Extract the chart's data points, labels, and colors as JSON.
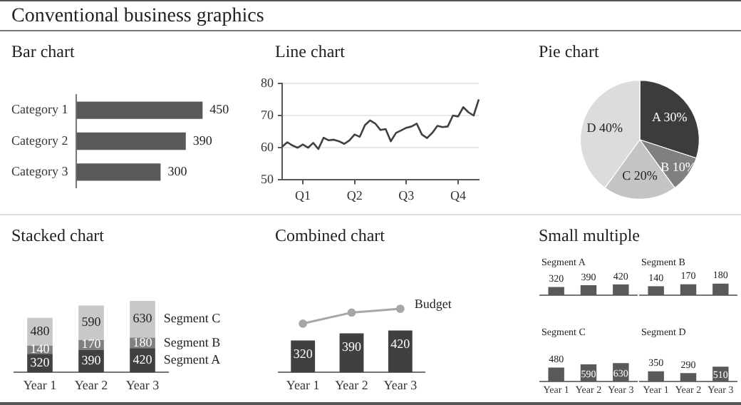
{
  "chart_data": [
    {
      "type": "other",
      "title": "Conventional business graphics"
    },
    {
      "type": "bar",
      "title": "Bar chart",
      "orientation": "horizontal",
      "categories": [
        "Category 1",
        "Category 2",
        "Category 3"
      ],
      "values": [
        450,
        390,
        300
      ],
      "color": "#595959",
      "data_labels": true
    },
    {
      "type": "line",
      "title": "Line chart",
      "categories": [
        null,
        null,
        null,
        null,
        "Q1",
        null,
        null,
        null,
        null,
        null,
        null,
        null,
        null,
        null,
        "Q2",
        null,
        null,
        null,
        null,
        null,
        null,
        null,
        null,
        null,
        "Q3",
        null,
        null,
        null,
        null,
        null,
        null,
        null,
        null,
        null,
        "Q4",
        null,
        null,
        null,
        null
      ],
      "values": [
        60.3,
        61.7,
        60.7,
        60,
        61,
        60,
        61.5,
        59.6,
        63.1,
        62.3,
        62.5,
        62,
        61.2,
        62.3,
        64.1,
        63.4,
        67,
        68.5,
        67.5,
        65.5,
        65.8,
        62,
        64.6,
        65.4,
        66.2,
        66.6,
        67.5,
        64.1,
        63,
        64.6,
        66.8,
        66.4,
        66.6,
        70,
        69.7,
        72.6,
        71,
        70,
        75
      ],
      "color": "#404040",
      "ylim": [
        50,
        80
      ],
      "yticks": [
        50,
        60,
        70,
        80
      ],
      "grid": "y"
    },
    {
      "type": "pie",
      "title": "Pie chart",
      "categories": [
        "A",
        "B",
        "C",
        "D"
      ],
      "values": [
        30,
        10,
        20,
        40
      ],
      "colors": [
        "#3c3c3c",
        "#808080",
        "#c4c4c4",
        "#dcdcdc"
      ],
      "value_labels": [
        "30%",
        "10%",
        "20%",
        "40%"
      ]
    },
    {
      "type": "bar",
      "title": "Stacked chart",
      "stacked": true,
      "categories": [
        "Year 1",
        "Year 2",
        "Year 3"
      ],
      "data_labels": true,
      "series": [
        {
          "name": "Segment A",
          "color": "#404040",
          "values": [
            320,
            390,
            420
          ]
        },
        {
          "name": "Segment B",
          "color": "#808080",
          "values": [
            140,
            170,
            180
          ]
        },
        {
          "name": "Segment C",
          "color": "#c8c8c8",
          "values": [
            480,
            590,
            630
          ]
        }
      ]
    },
    {
      "type": "bar",
      "title": "Combined chart",
      "categories": [
        "Year 1",
        "Year 2",
        "Year 3"
      ],
      "marker": "circle",
      "series": [
        {
          "type": "bar",
          "color": "#404040",
          "values": [
            320,
            390,
            420
          ],
          "value_labels": [
            "320",
            "390",
            "420"
          ]
        },
        {
          "type": "line",
          "name": "Budget",
          "color": "#a6a6a6",
          "values": [
            488,
            598,
            636
          ]
        }
      ]
    },
    {
      "type": "other",
      "title": "Small multiple"
    },
    {
      "type": "bar",
      "title": "Segment A",
      "categories": [
        null,
        null,
        null
      ],
      "values": [
        320,
        390,
        420
      ],
      "color": "#595959",
      "data_labels": true
    },
    {
      "type": "bar",
      "title": "Segment B",
      "categories": [
        null,
        null,
        null
      ],
      "values": [
        140,
        170,
        180
      ],
      "color": "#595959",
      "data_labels": true
    },
    {
      "type": "bar",
      "title": "Segment C",
      "categories": [
        "Year 1",
        "Year 2",
        "Year 3"
      ],
      "values": [
        480,
        590,
        630
      ],
      "color": "#595959",
      "data_labels": true
    },
    {
      "type": "bar",
      "title": "Segment D",
      "categories": [
        "Year 1",
        "Year 2",
        "Year 3"
      ],
      "values": [
        350,
        290,
        510
      ],
      "color": "#595959",
      "data_labels": true
    }
  ]
}
